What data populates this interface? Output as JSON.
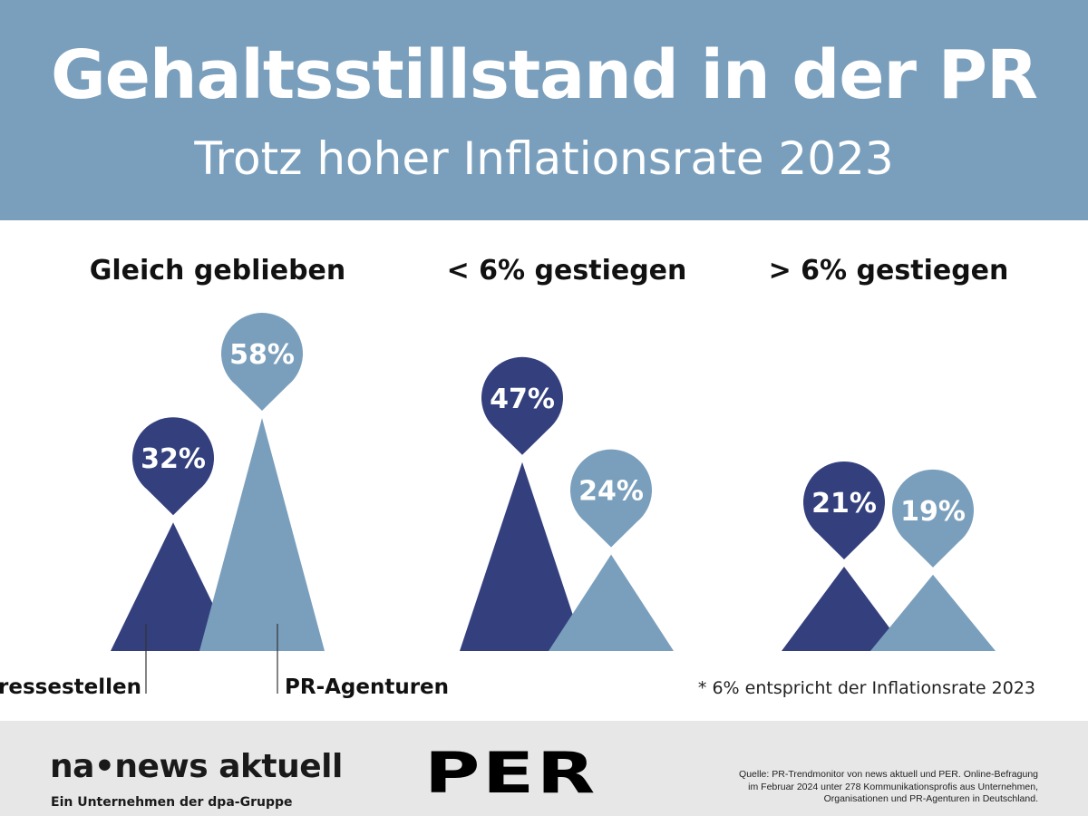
{
  "header": {
    "title": "Gehaltsstillstand in der PR",
    "subtitle": "Trotz hoher Inflationsrate 2023"
  },
  "colors": {
    "header_bg": "#7a9fbd",
    "pressestellen": "#34407e",
    "pr_agenturen": "#7a9fbd",
    "footer_bg": "#e6e7e6"
  },
  "chart_data": {
    "type": "bar",
    "title": "Gehaltsstillstand in der PR",
    "subtitle": "Trotz hoher Inflationsrate 2023",
    "categories": [
      "Gleich geblieben",
      "< 6% gestiegen",
      "> 6% gestiegen"
    ],
    "series": [
      {
        "name": "Pressestellen",
        "values": [
          32,
          47,
          21
        ],
        "labels": [
          "32%",
          "47%",
          "21%"
        ]
      },
      {
        "name": "PR-Agenturen",
        "values": [
          58,
          24,
          19
        ],
        "labels": [
          "58%",
          "24%",
          "19%"
        ]
      }
    ],
    "unit": "%",
    "legend_placement": "bottom-left",
    "grid": false,
    "note": "* 6% entspricht der Inflationsrate 2023"
  },
  "footer": {
    "logo_na": "na•news aktuell",
    "logo_na_sub": "Ein Unternehmen der dpa-Gruppe",
    "logo_per": "PER",
    "source": [
      "Quelle: PR-Trendmonitor von news aktuell und PER. Online-Befragung",
      "im Februar 2024 unter 278 Kommunikationsprofis aus Unternehmen,",
      "Organisationen und PR-Agenturen in Deutschland."
    ]
  }
}
